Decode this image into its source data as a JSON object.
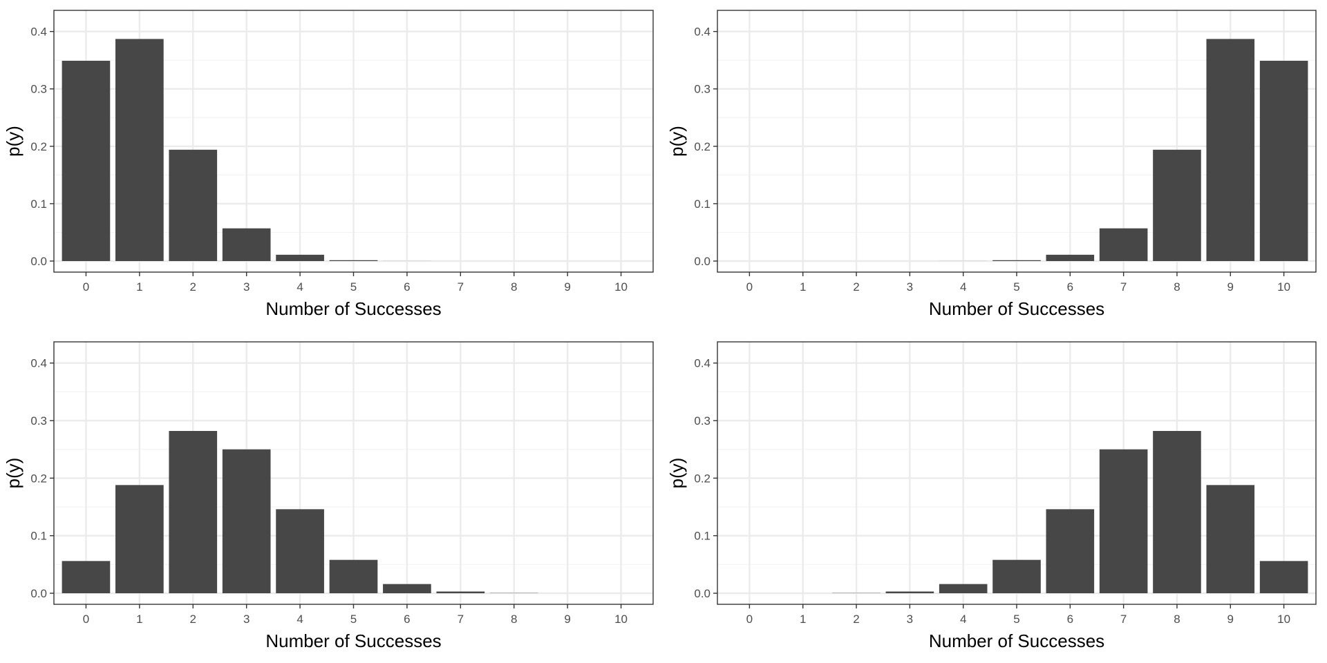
{
  "chart_data": [
    {
      "type": "bar",
      "panel": "top-left",
      "categories": [
        "0",
        "1",
        "2",
        "3",
        "4",
        "5",
        "6",
        "7",
        "8",
        "9",
        "10"
      ],
      "values": [
        0.349,
        0.387,
        0.194,
        0.057,
        0.011,
        0.0015,
        0.0001,
        0.0,
        0.0,
        0.0,
        0.0
      ],
      "xlabel": "Number of Successes",
      "ylabel": "p(y)",
      "ylim": [
        0,
        0.42
      ],
      "yticks": [
        "0.0",
        "0.1",
        "0.2",
        "0.3",
        "0.4"
      ],
      "grid": true
    },
    {
      "type": "bar",
      "panel": "top-right",
      "categories": [
        "0",
        "1",
        "2",
        "3",
        "4",
        "5",
        "6",
        "7",
        "8",
        "9",
        "10"
      ],
      "values": [
        0.0,
        0.0,
        0.0,
        0.0,
        0.0001,
        0.0015,
        0.011,
        0.057,
        0.194,
        0.387,
        0.349
      ],
      "xlabel": "Number of Successes",
      "ylabel": "p(y)",
      "ylim": [
        0,
        0.42
      ],
      "yticks": [
        "0.0",
        "0.1",
        "0.2",
        "0.3",
        "0.4"
      ],
      "grid": true
    },
    {
      "type": "bar",
      "panel": "bottom-left",
      "categories": [
        "0",
        "1",
        "2",
        "3",
        "4",
        "5",
        "6",
        "7",
        "8",
        "9",
        "10"
      ],
      "values": [
        0.056,
        0.188,
        0.282,
        0.25,
        0.146,
        0.058,
        0.016,
        0.003,
        0.0004,
        0.0,
        0.0
      ],
      "xlabel": "Number of Successes",
      "ylabel": "p(y)",
      "ylim": [
        0,
        0.42
      ],
      "yticks": [
        "0.0",
        "0.1",
        "0.2",
        "0.3",
        "0.4"
      ],
      "grid": true
    },
    {
      "type": "bar",
      "panel": "bottom-right",
      "categories": [
        "0",
        "1",
        "2",
        "3",
        "4",
        "5",
        "6",
        "7",
        "8",
        "9",
        "10"
      ],
      "values": [
        0.0,
        0.0,
        0.0004,
        0.003,
        0.016,
        0.058,
        0.146,
        0.25,
        0.282,
        0.188,
        0.056
      ],
      "xlabel": "Number of Successes",
      "ylabel": "p(y)",
      "ylim": [
        0,
        0.42
      ],
      "yticks": [
        "0.0",
        "0.1",
        "0.2",
        "0.3",
        "0.4"
      ],
      "grid": true
    }
  ],
  "colors": {
    "bar": "#474747",
    "grid_major": "#ebebeb",
    "grid_minor": "#f3f3f3",
    "panel_border": "#333333",
    "tick_text": "#4d4d4d",
    "title_text": "#000000"
  }
}
